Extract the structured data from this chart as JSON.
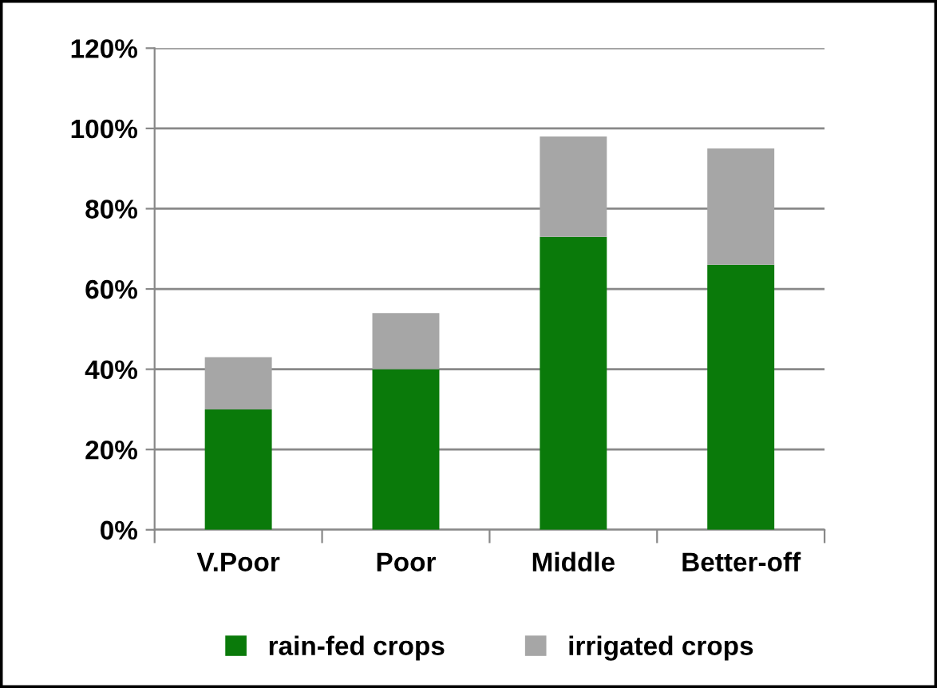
{
  "chart_data": {
    "type": "bar",
    "stacked": true,
    "categories": [
      "V.Poor",
      "Poor",
      "Middle",
      "Better-off"
    ],
    "series": [
      {
        "name": "rain-fed crops",
        "color": "#0a7a0a",
        "values": [
          30,
          40,
          73,
          66
        ]
      },
      {
        "name": "irrigated crops",
        "color": "#a6a6a6",
        "values": [
          13,
          14,
          25,
          29
        ]
      }
    ],
    "ylim": [
      0,
      120
    ],
    "yticks": [
      {
        "value": 0,
        "label": "0%"
      },
      {
        "value": 20,
        "label": "20%"
      },
      {
        "value": 40,
        "label": "40%"
      },
      {
        "value": 60,
        "label": "60%"
      },
      {
        "value": 80,
        "label": "80%"
      },
      {
        "value": 100,
        "label": "100%"
      },
      {
        "value": 120,
        "label": "120%"
      }
    ],
    "grid": "y",
    "legend": "bottom"
  }
}
